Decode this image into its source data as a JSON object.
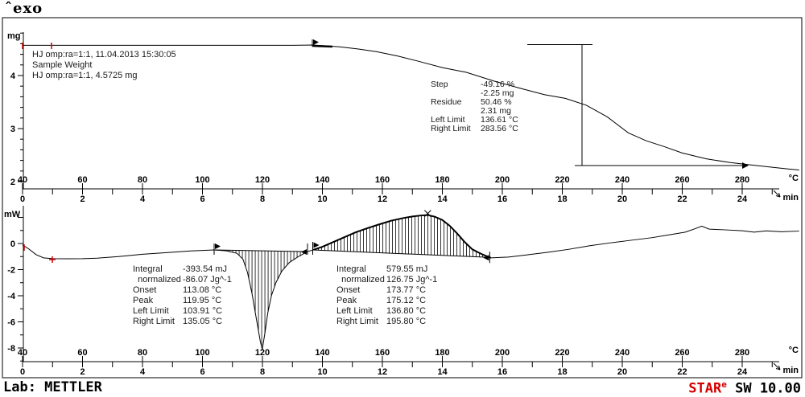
{
  "window": {
    "exo_label": "ˆexo",
    "lab": "Lab: METTLER",
    "software": {
      "star": "STAR",
      "sup": "e",
      "rest": " SW 10.00"
    }
  },
  "tga": {
    "unit_y": "mg",
    "unit_temp": "°C",
    "unit_time": "min",
    "info_lines": [
      "HJ omp:ra=1:1, 11.04.2013 15:30:05",
      "Sample Weight",
      "HJ omp:ra=1:1, 4.5725 mg"
    ],
    "step_table": [
      [
        "Step",
        "-49.16 %"
      ],
      [
        "",
        "-2.25 mg"
      ],
      [
        "Residue",
        "50.46 %"
      ],
      [
        "",
        "2.31 mg"
      ],
      [
        "Left Limit",
        "136.61 °C"
      ],
      [
        "Right Limit",
        "283.56 °C"
      ]
    ],
    "y_tick_labels": [
      4,
      3,
      2
    ]
  },
  "dsc": {
    "unit_y": "mW",
    "unit_temp": "°C",
    "unit_time": "min",
    "integral_left": [
      [
        "Integral",
        "-393.54 mJ"
      ],
      [
        "  normalized",
        "-86.07 Jg^-1"
      ],
      [
        "Onset",
        "113.08 °C"
      ],
      [
        "Peak",
        "119.95 °C"
      ],
      [
        "Left Limit",
        "103.91 °C"
      ],
      [
        "Right Limit",
        "135.05 °C"
      ]
    ],
    "integral_right": [
      [
        "Integral",
        "579.55 mJ"
      ],
      [
        "  normalized",
        "126.75 Jg^-1"
      ],
      [
        "Onset",
        "173.77 °C"
      ],
      [
        "Peak",
        "175.12 °C"
      ],
      [
        "Left Limit",
        "136.80 °C"
      ],
      [
        "Right Limit",
        "195.80 °C"
      ]
    ],
    "y_tick_labels": [
      0,
      -2,
      -4,
      -6,
      -8
    ]
  },
  "chart_data": [
    {
      "type": "line",
      "name": "TGA sample weight curve",
      "ylabel": "mg",
      "xlabel": "°C",
      "xlim": [
        40,
        299
      ],
      "ylim": [
        2,
        4.8
      ],
      "grid": false,
      "x_axis": {
        "unit": "°C",
        "major_ticks": [
          40,
          60,
          80,
          100,
          120,
          140,
          160,
          180,
          200,
          220,
          240,
          260,
          280
        ],
        "minor_step": 10
      },
      "time_axis": {
        "unit": "min",
        "labels": [
          0,
          2,
          4,
          6,
          8,
          10,
          12,
          14,
          16,
          18,
          20,
          22,
          24
        ],
        "heating_rate_C_per_min": 10
      },
      "sample_weight_mg": 4.5725,
      "step_result": {
        "step_pct": -49.16,
        "step_mg": -2.25,
        "residue_pct": 50.46,
        "residue_mg": 2.31,
        "left_limit_C": 136.61,
        "right_limit_C": 283.56
      },
      "points": [
        [
          40,
          4.57
        ],
        [
          60,
          4.57
        ],
        [
          80,
          4.57
        ],
        [
          100,
          4.57
        ],
        [
          120,
          4.57
        ],
        [
          130,
          4.57
        ],
        [
          136.6,
          4.575
        ],
        [
          141,
          4.56
        ],
        [
          146,
          4.54
        ],
        [
          152,
          4.5
        ],
        [
          158,
          4.45
        ],
        [
          165,
          4.37
        ],
        [
          172,
          4.27
        ],
        [
          180,
          4.15
        ],
        [
          188,
          4.06
        ],
        [
          197,
          3.9
        ],
        [
          206,
          3.76
        ],
        [
          214,
          3.64
        ],
        [
          221,
          3.57
        ],
        [
          228,
          3.44
        ],
        [
          235,
          3.22
        ],
        [
          242,
          2.92
        ],
        [
          248,
          2.77
        ],
        [
          254,
          2.66
        ],
        [
          260,
          2.54
        ],
        [
          268,
          2.43
        ],
        [
          276,
          2.36
        ],
        [
          283.6,
          2.31
        ],
        [
          290,
          2.27
        ],
        [
          295,
          2.24
        ],
        [
          299,
          2.22
        ]
      ]
    },
    {
      "type": "line",
      "name": "DSC heat flow curve",
      "ylabel": "mW",
      "xlabel": "°C",
      "xlim": [
        40,
        299
      ],
      "ylim": [
        -9,
        2.5
      ],
      "grid": false,
      "peaks": [
        {
          "kind": "endothermic",
          "integral_mJ": -393.54,
          "normalized_Jg": -86.07,
          "onset_C": 113.08,
          "peak_C": 119.95,
          "left_limit_C": 103.91,
          "right_limit_C": 135.05
        },
        {
          "kind": "exothermic",
          "integral_mJ": 579.55,
          "normalized_Jg": 126.75,
          "onset_C": 173.77,
          "peak_C": 175.12,
          "left_limit_C": 136.8,
          "right_limit_C": 195.8
        }
      ],
      "points": [
        [
          40,
          -0.12
        ],
        [
          42,
          -0.4
        ],
        [
          44.5,
          -0.85
        ],
        [
          47,
          -1.1
        ],
        [
          50,
          -1.16
        ],
        [
          55,
          -1.17
        ],
        [
          60,
          -1.16
        ],
        [
          65,
          -1.12
        ],
        [
          72,
          -1.0
        ],
        [
          80,
          -0.82
        ],
        [
          88,
          -0.7
        ],
        [
          96,
          -0.57
        ],
        [
          103.9,
          -0.49
        ],
        [
          108,
          -0.56
        ],
        [
          111.5,
          -0.75
        ],
        [
          113.5,
          -1.2
        ],
        [
          115,
          -2.2
        ],
        [
          116.5,
          -3.8
        ],
        [
          118,
          -5.8
        ],
        [
          119.3,
          -7.5
        ],
        [
          119.95,
          -8.1
        ],
        [
          120.8,
          -6.9
        ],
        [
          121.8,
          -5.3
        ],
        [
          123,
          -4.0
        ],
        [
          124.5,
          -3.0
        ],
        [
          126.5,
          -2.1
        ],
        [
          129,
          -1.45
        ],
        [
          132,
          -1.0
        ],
        [
          135.05,
          -0.62
        ],
        [
          137,
          -0.48
        ],
        [
          140,
          -0.25
        ],
        [
          143,
          0.05
        ],
        [
          147,
          0.45
        ],
        [
          151,
          0.85
        ],
        [
          155,
          1.17
        ],
        [
          159,
          1.47
        ],
        [
          163,
          1.75
        ],
        [
          167,
          1.95
        ],
        [
          170,
          2.07
        ],
        [
          173,
          2.15
        ],
        [
          175.1,
          2.18
        ],
        [
          177.5,
          2.05
        ],
        [
          180,
          1.8
        ],
        [
          182.5,
          1.35
        ],
        [
          185,
          0.75
        ],
        [
          187.5,
          0.1
        ],
        [
          190,
          -0.45
        ],
        [
          193,
          -0.8
        ],
        [
          196.2,
          -1.1
        ],
        [
          202,
          -1.04
        ],
        [
          208,
          -0.88
        ],
        [
          215,
          -0.68
        ],
        [
          222,
          -0.45
        ],
        [
          229,
          -0.18
        ],
        [
          236,
          0.05
        ],
        [
          243,
          0.25
        ],
        [
          250,
          0.45
        ],
        [
          256,
          0.68
        ],
        [
          261,
          0.87
        ],
        [
          264.5,
          1.15
        ],
        [
          266.5,
          1.33
        ],
        [
          269,
          1.1
        ],
        [
          274,
          1.05
        ],
        [
          280,
          0.98
        ],
        [
          284,
          0.87
        ],
        [
          288,
          0.97
        ],
        [
          293,
          0.9
        ],
        [
          299,
          0.95
        ]
      ]
    }
  ]
}
